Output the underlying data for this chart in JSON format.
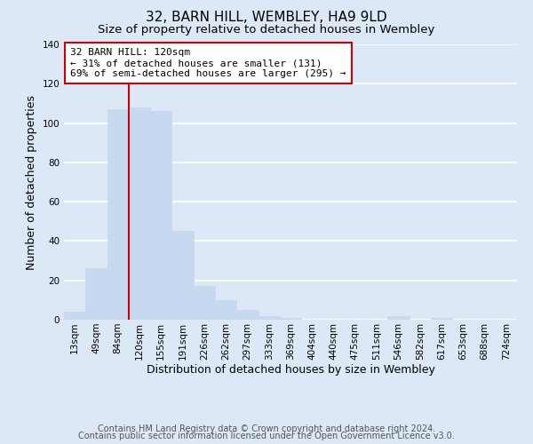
{
  "title": "32, BARN HILL, WEMBLEY, HA9 9LD",
  "subtitle": "Size of property relative to detached houses in Wembley",
  "xlabel": "Distribution of detached houses by size in Wembley",
  "ylabel": "Number of detached properties",
  "bar_values": [
    4,
    26,
    107,
    108,
    106,
    45,
    17,
    10,
    5,
    2,
    1,
    0,
    0,
    0,
    0,
    2,
    0,
    1,
    0,
    0,
    0
  ],
  "bin_labels": [
    "13sqm",
    "49sqm",
    "84sqm",
    "120sqm",
    "155sqm",
    "191sqm",
    "226sqm",
    "262sqm",
    "297sqm",
    "333sqm",
    "369sqm",
    "404sqm",
    "440sqm",
    "475sqm",
    "511sqm",
    "546sqm",
    "582sqm",
    "617sqm",
    "653sqm",
    "688sqm",
    "724sqm"
  ],
  "bar_color": "#c6d9f0",
  "bar_edge_color": "#c8d8ec",
  "vline_x_index": 3,
  "vline_color": "#cc0000",
  "ylim": [
    0,
    140
  ],
  "yticks": [
    0,
    20,
    40,
    60,
    80,
    100,
    120,
    140
  ],
  "annotation_text": "32 BARN HILL: 120sqm\n← 31% of detached houses are smaller (131)\n69% of semi-detached houses are larger (295) →",
  "annotation_box_color": "#ffffff",
  "annotation_box_edge_color": "#cc0000",
  "footer_line1": "Contains HM Land Registry data © Crown copyright and database right 2024.",
  "footer_line2": "Contains public sector information licensed under the Open Government Licence v3.0.",
  "background_color": "#dce8f5",
  "plot_bg_color": "#dce8f5",
  "grid_color": "#ffffff",
  "title_fontsize": 11,
  "subtitle_fontsize": 9.5,
  "label_fontsize": 9,
  "tick_fontsize": 7.5,
  "annotation_fontsize": 8,
  "footer_fontsize": 7
}
